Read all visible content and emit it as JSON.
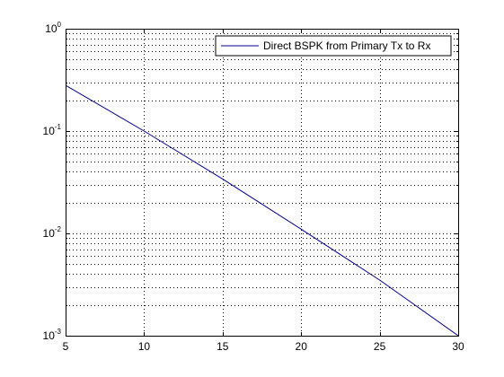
{
  "chart_data": {
    "type": "line",
    "title": "",
    "xlabel": "",
    "ylabel": "",
    "xlim": [
      5,
      30
    ],
    "ylim": [
      0.001,
      1
    ],
    "yscale": "log",
    "grid": "on (dotted, major and minor)",
    "legend_placement": "top-right",
    "x_ticks": [
      "5",
      "10",
      "15",
      "20",
      "25",
      "30"
    ],
    "y_ticks": [
      {
        "base": "10",
        "exp": "-3"
      },
      {
        "base": "10",
        "exp": "-2"
      },
      {
        "base": "10",
        "exp": "-1"
      },
      {
        "base": "10",
        "exp": "0"
      }
    ],
    "series": [
      {
        "name": "Direct BSPK from Primary Tx to Rx",
        "color": "#00008b",
        "x": [
          5,
          10,
          15,
          20,
          25,
          30
        ],
        "y": [
          0.28,
          0.1,
          0.034,
          0.011,
          0.0035,
          0.001
        ]
      }
    ]
  }
}
